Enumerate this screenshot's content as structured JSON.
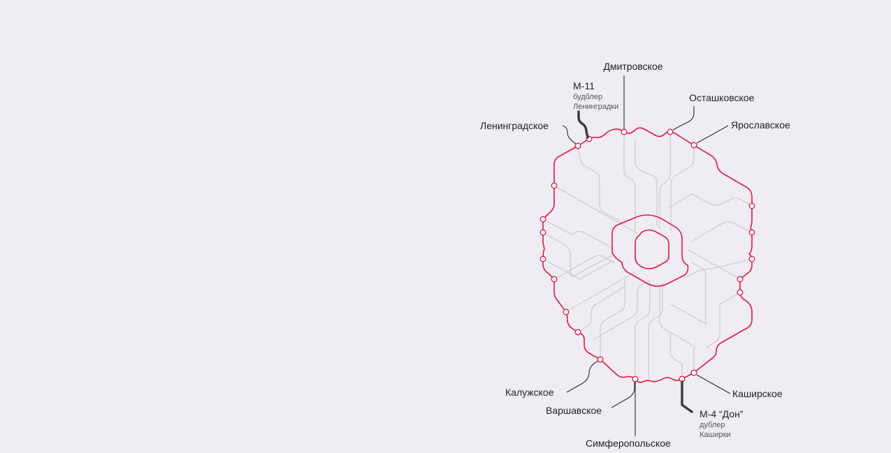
{
  "colors": {
    "background": "#efedf3",
    "ring_red": "#e3173e",
    "minor_roads_grey": "#cfcdd3",
    "leader_dark": "#2a2a2a"
  },
  "labels": {
    "dmitrovskoe": "Дмитровское",
    "ostashkovskoe": "Осташковское",
    "yaroslavskoe": "Ярославское",
    "leningradskoe": "Ленинградское",
    "m11_title": "М-11",
    "m11_sub1": "будблер",
    "m11_sub2": "Ленинградки",
    "kaluzhskoe": "Калужское",
    "varshavskoe": "Варшавское",
    "simferopolskoe": "Симферопольское",
    "kashirskoe": "Каширское",
    "m4_title": "М-4 “Дон”",
    "m4_sub1": "дублер",
    "m4_sub2": "Каширки"
  }
}
